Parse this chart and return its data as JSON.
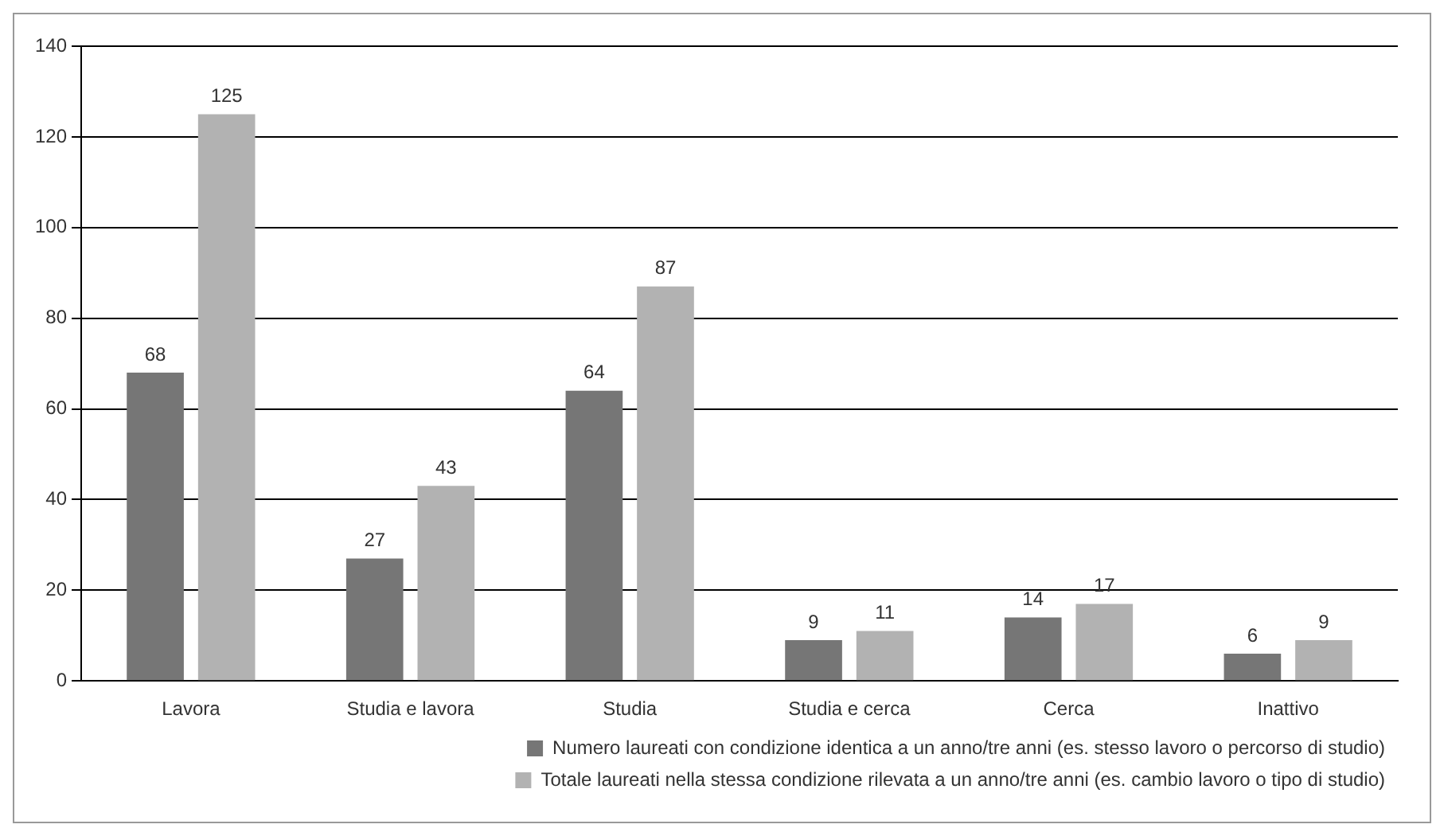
{
  "chart_data": {
    "type": "bar",
    "categories": [
      "Lavora",
      "Studia e lavora",
      "Studia",
      "Studia e cerca",
      "Cerca",
      "Inattivo"
    ],
    "series": [
      {
        "name": "Numero laureati con condizione identica a un anno/tre anni (es. stesso lavoro o percorso di studio)",
        "color": "#767676",
        "values": [
          68,
          27,
          64,
          9,
          14,
          6
        ]
      },
      {
        "name": "Totale laureati nella stessa condizione rilevata a un anno/tre anni (es. cambio lavoro o tipo di studio)",
        "color": "#b2b2b2",
        "values": [
          125,
          43,
          87,
          11,
          17,
          9
        ]
      }
    ],
    "ylim": [
      0,
      140
    ],
    "yticks": [
      0,
      20,
      40,
      60,
      80,
      100,
      120,
      140
    ],
    "grid": "y",
    "legend": "bottom right",
    "data_labels": true
  }
}
